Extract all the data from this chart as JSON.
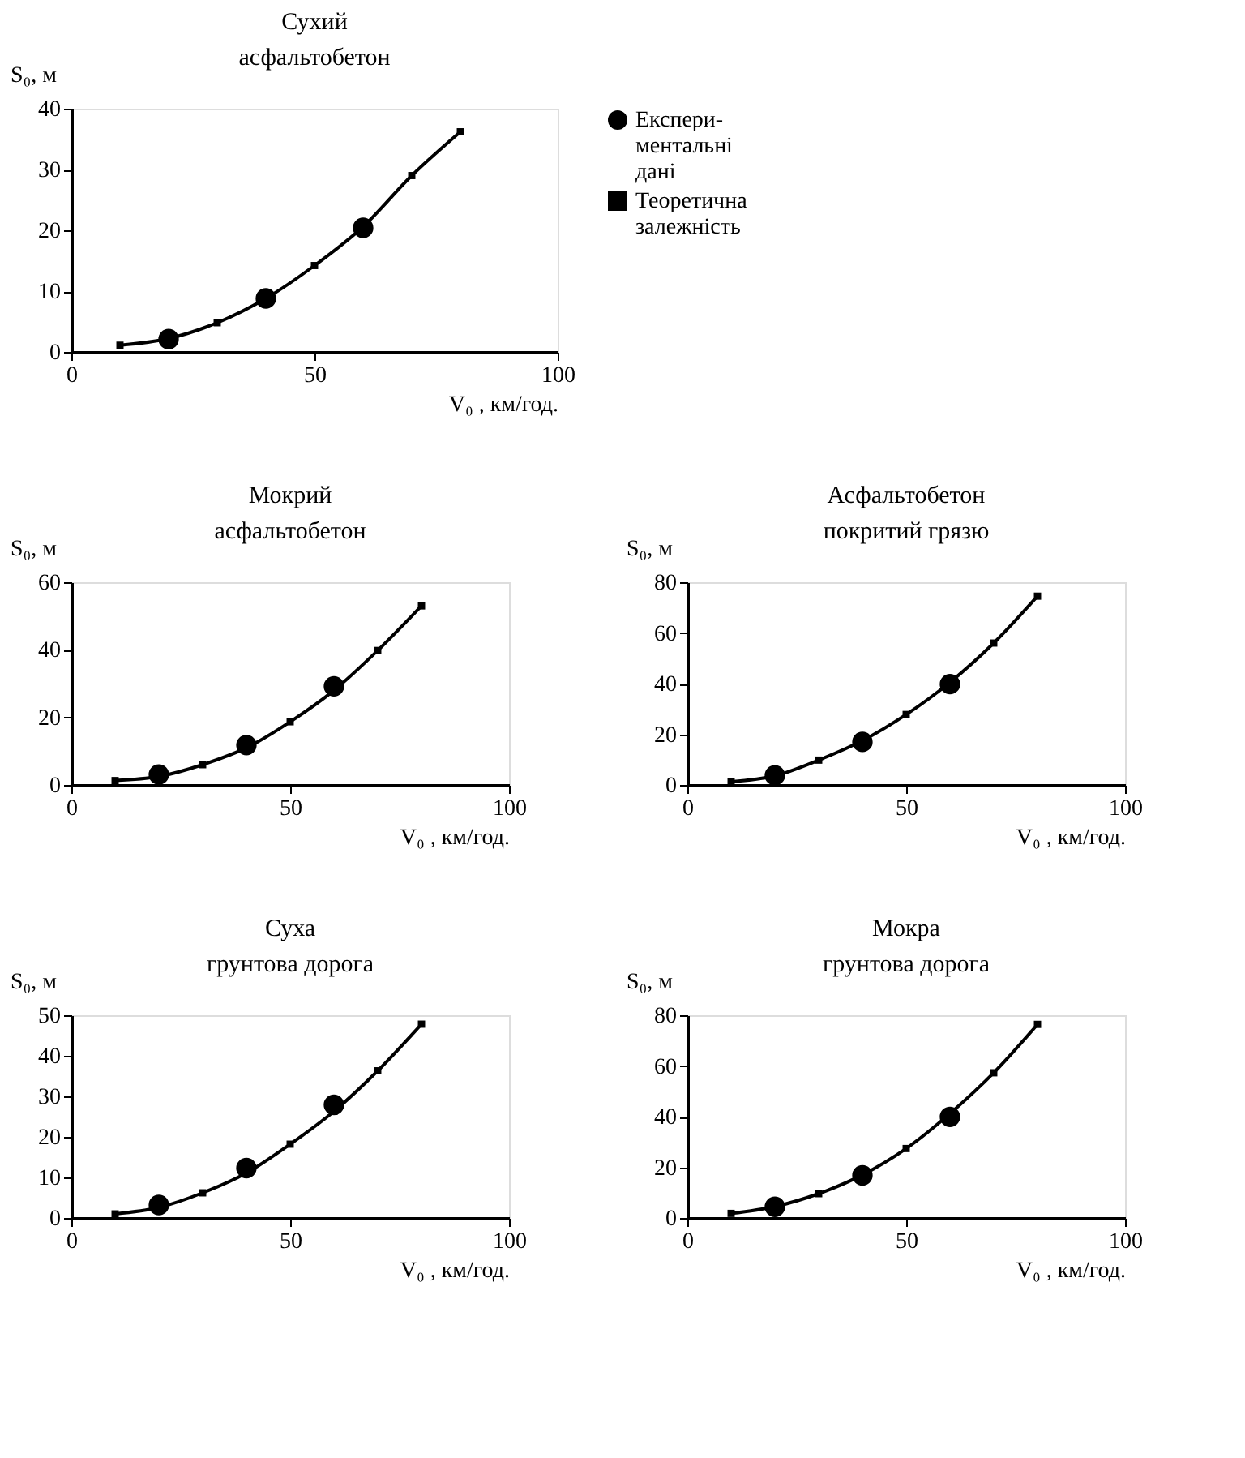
{
  "chart_data": [
    {
      "type": "line",
      "title": "Сухий\nасфальтобетон",
      "xlabel": "V₀ , км/год.",
      "ylabel": "S₀, м",
      "xlim": [
        0,
        100
      ],
      "xticks": [
        0,
        50,
        100
      ],
      "ylim": [
        0,
        40
      ],
      "yticks": [
        0,
        10,
        20,
        30,
        40
      ],
      "grid": false,
      "legend": "right",
      "series": [
        {
          "name": "Експери-\nментальні\nдані",
          "type": "scatter",
          "marker": "circle",
          "color": "#000000",
          "x": [
            20,
            40,
            60
          ],
          "values": [
            2.1,
            8.8,
            20.4
          ]
        },
        {
          "name": "Теоретична\nзалежність",
          "type": "line",
          "marker": "square",
          "color": "#000000",
          "x": [
            10,
            20,
            30,
            40,
            50,
            60,
            70,
            80
          ],
          "values": [
            1.1,
            2.2,
            4.8,
            8.8,
            14.2,
            20.6,
            29,
            36.2
          ]
        }
      ]
    },
    {
      "type": "line",
      "title": "Мокрий\nасфальтобетон",
      "xlabel": "V₀ , км/год.",
      "ylabel": "S₀, м",
      "xlim": [
        0,
        100
      ],
      "xticks": [
        0,
        50,
        100
      ],
      "ylim": [
        0,
        60
      ],
      "yticks": [
        0,
        20,
        40,
        60
      ],
      "grid": false,
      "legend": false,
      "series": [
        {
          "type": "scatter",
          "marker": "circle",
          "color": "#000000",
          "x": [
            20,
            40,
            60
          ],
          "values": [
            3.1,
            11.8,
            29.2
          ]
        },
        {
          "type": "line",
          "marker": "square",
          "color": "#000000",
          "x": [
            10,
            20,
            30,
            40,
            50,
            60,
            70,
            80
          ],
          "values": [
            1.3,
            2.5,
            6,
            11,
            18.7,
            28,
            39.8,
            53
          ]
        }
      ]
    },
    {
      "type": "line",
      "title": "Асфальтобетон\nпокритий грязю",
      "xlabel": "V₀ , км/год.",
      "ylabel": "S₀, м",
      "xlim": [
        0,
        100
      ],
      "xticks": [
        0,
        50,
        100
      ],
      "ylim": [
        0,
        80
      ],
      "yticks": [
        0,
        20,
        40,
        60,
        80
      ],
      "grid": false,
      "legend": false,
      "series": [
        {
          "type": "scatter",
          "marker": "circle",
          "color": "#000000",
          "x": [
            20,
            40,
            60
          ],
          "values": [
            3.8,
            17,
            39.8
          ]
        },
        {
          "type": "line",
          "marker": "square",
          "color": "#000000",
          "x": [
            10,
            20,
            30,
            40,
            50,
            60,
            70,
            80
          ],
          "values": [
            1.3,
            3.6,
            9.8,
            17.5,
            27.8,
            40.5,
            56,
            74.5
          ]
        }
      ]
    },
    {
      "type": "line",
      "title": "Суха\nгрунтова дорога",
      "xlabel": "V₀ , км/год.",
      "ylabel": "S₀, м",
      "xlim": [
        0,
        100
      ],
      "xticks": [
        0,
        50,
        100
      ],
      "ylim": [
        0,
        50
      ],
      "yticks": [
        0,
        10,
        20,
        30,
        40,
        50
      ],
      "grid": false,
      "legend": false,
      "series": [
        {
          "type": "scatter",
          "marker": "circle",
          "color": "#000000",
          "x": [
            20,
            40,
            60
          ],
          "values": [
            3.2,
            12.3,
            27.9
          ]
        },
        {
          "type": "line",
          "marker": "square",
          "color": "#000000",
          "x": [
            10,
            20,
            30,
            40,
            50,
            60,
            70,
            80
          ],
          "values": [
            1,
            2.6,
            6.2,
            11.1,
            18.2,
            26.3,
            36.3,
            47.8
          ]
        }
      ]
    },
    {
      "type": "line",
      "title": "Мокра\nгрунтова дорога",
      "xlabel": "V₀ , км/год.",
      "ylabel": "S₀, м",
      "xlim": [
        0,
        100
      ],
      "xticks": [
        0,
        50,
        100
      ],
      "ylim": [
        0,
        80
      ],
      "yticks": [
        0,
        20,
        40,
        60,
        80
      ],
      "grid": false,
      "legend": false,
      "series": [
        {
          "type": "scatter",
          "marker": "circle",
          "color": "#000000",
          "x": [
            20,
            40,
            60
          ],
          "values": [
            4.4,
            16.8,
            39.9
          ]
        },
        {
          "type": "line",
          "marker": "square",
          "color": "#000000",
          "x": [
            10,
            20,
            30,
            40,
            50,
            60,
            70,
            80
          ],
          "values": [
            1.8,
            4.5,
            9.6,
            17,
            27.4,
            41.2,
            57.3,
            76.4
          ]
        }
      ]
    }
  ]
}
